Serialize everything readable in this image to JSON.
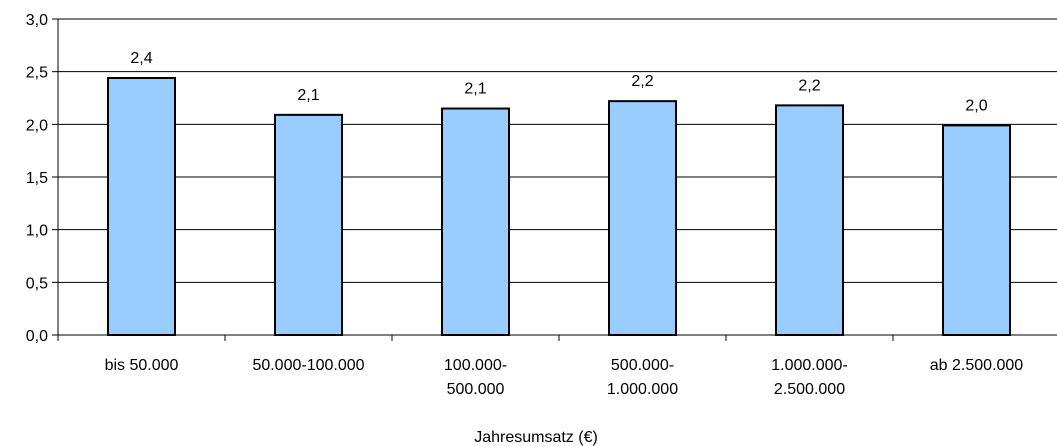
{
  "chart_data": {
    "type": "bar",
    "title": "",
    "xlabel": "Jahresumsatz (€)",
    "ylabel": "",
    "ylim": [
      0,
      3
    ],
    "y_ticks": [
      "0,0",
      "0,5",
      "1,0",
      "1,5",
      "2,0",
      "2,5",
      "3,0"
    ],
    "grid": true,
    "bar_color": "#99ccff",
    "categories": [
      [
        "bis 50.000"
      ],
      [
        "50.000-100.000"
      ],
      [
        "100.000-",
        "500.000"
      ],
      [
        "500.000-",
        "1.000.000"
      ],
      [
        "1.000.000-",
        "2.500.000"
      ],
      [
        "ab 2.500.000"
      ]
    ],
    "values": [
      2.44,
      2.09,
      2.15,
      2.22,
      2.18,
      1.99
    ],
    "data_labels": [
      "2,4",
      "2,1",
      "2,1",
      "2,2",
      "2,2",
      "2,0"
    ]
  }
}
